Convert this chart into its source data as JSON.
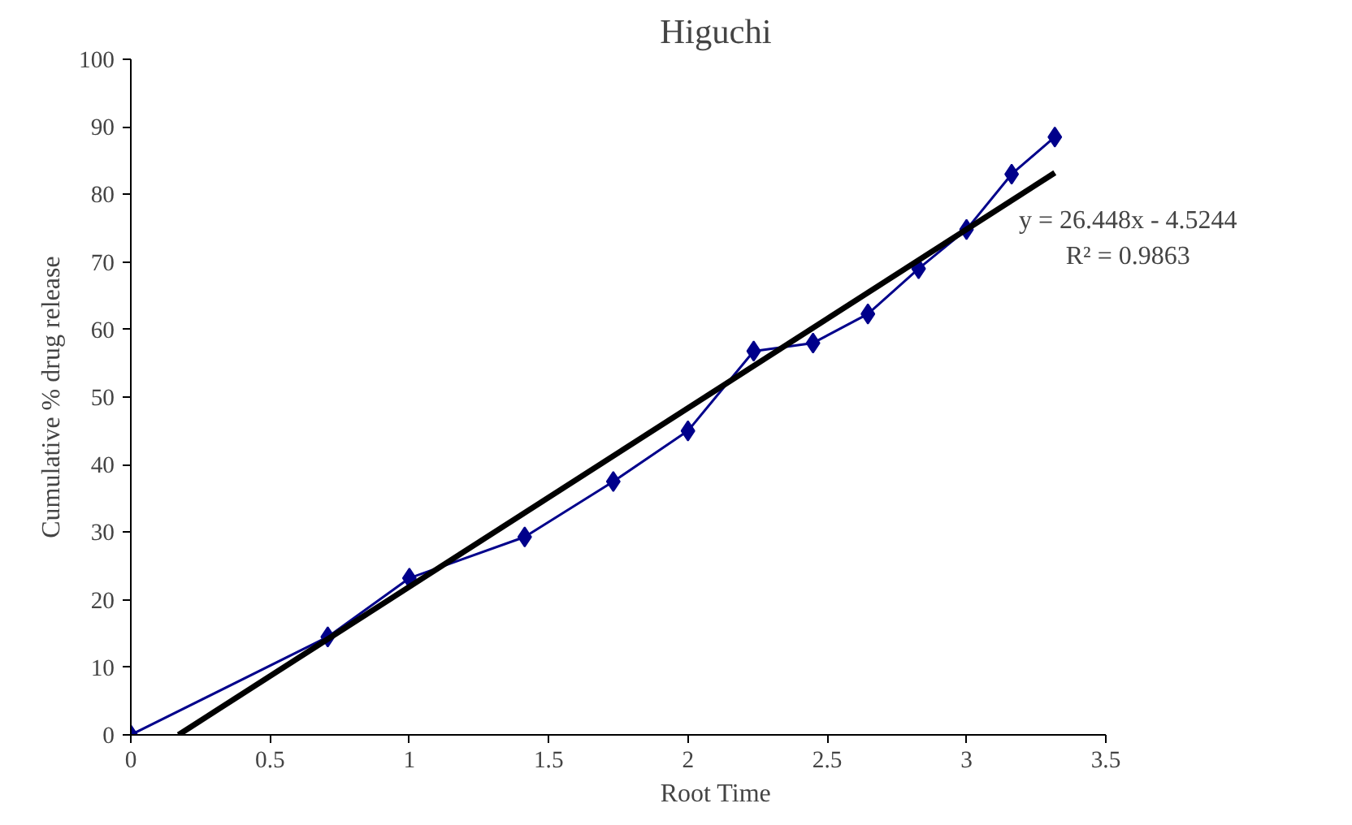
{
  "chart_data": {
    "type": "line",
    "title": "Higuchi",
    "xlabel": "Root Time",
    "ylabel": "Cumulative % drug release",
    "xlim": [
      0,
      3.5
    ],
    "xticks": [
      0,
      0.5,
      1,
      1.5,
      2,
      2.5,
      3,
      3.5
    ],
    "ylim": [
      0,
      100
    ],
    "yticks": [
      0,
      10,
      20,
      30,
      40,
      50,
      60,
      70,
      80,
      90,
      100
    ],
    "grid": false,
    "series": [
      {
        "color": "#00008b",
        "marker": "diamond",
        "x": [
          0,
          0.707,
          1,
          1.414,
          1.732,
          2,
          2.236,
          2.449,
          2.646,
          2.828,
          3,
          3.162,
          3.317
        ],
        "values": [
          0,
          14.5,
          23.2,
          29.3,
          37.5,
          45,
          56.8,
          58,
          62.3,
          69,
          74.8,
          83,
          88.5
        ]
      },
      {
        "color": "#000000",
        "marker": "none",
        "x": [
          0.171,
          3.317
        ],
        "values": [
          0,
          83.2
        ]
      }
    ],
    "annotations": [
      {
        "text": "y = 26.448x - 4.5244",
        "x": 3.317,
        "y": 83.2
      },
      {
        "text": "R² = 0.9863",
        "x": 3.317,
        "y": 83.2
      }
    ]
  }
}
